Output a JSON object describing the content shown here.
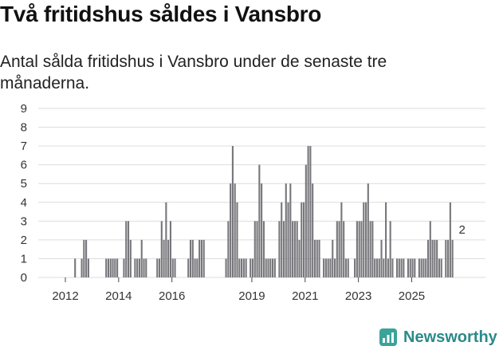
{
  "header": {
    "title": "Två fritidshus såldes i Vansbro",
    "subtitle": "Antal sålda fritidshus i Vansbro under de senaste tre månaderna."
  },
  "brand": {
    "name": "Newsworthy",
    "color": "#2b8a8a",
    "icon": "bar-chart-logo-icon"
  },
  "chart_data": {
    "type": "bar",
    "title": "",
    "xlabel": "",
    "ylabel": "",
    "ylim": [
      0,
      9
    ],
    "y_ticks": [
      "0",
      "1",
      "2",
      "3",
      "4",
      "5",
      "6",
      "7",
      "8",
      "9"
    ],
    "x_ticks": [
      {
        "label": "2012",
        "month_index": 0
      },
      {
        "label": "2014",
        "month_index": 24
      },
      {
        "label": "2016",
        "month_index": 48
      },
      {
        "label": "2019",
        "month_index": 84
      },
      {
        "label": "2021",
        "month_index": 108
      },
      {
        "label": "2023",
        "month_index": 132
      },
      {
        "label": "2025",
        "month_index": 156
      }
    ],
    "grid": true,
    "colors": {
      "bars": "#77767b",
      "highlight": "#2a9d8f"
    },
    "series": [
      {
        "values": [
          0,
          0,
          0,
          0,
          1,
          0,
          0,
          1,
          2,
          2,
          1,
          0,
          0,
          0,
          0,
          0,
          0,
          0,
          1,
          1,
          1,
          1,
          1,
          1,
          0,
          0,
          1,
          3,
          3,
          2,
          0,
          1,
          1,
          1,
          2,
          1,
          1,
          0,
          0,
          0,
          0,
          1,
          1,
          3,
          2,
          4,
          2,
          3,
          1,
          1,
          0,
          0,
          0,
          0,
          0,
          1,
          2,
          2,
          1,
          1,
          2,
          2,
          2,
          0,
          0,
          0,
          0,
          0,
          0,
          0,
          0,
          0,
          1,
          3,
          5,
          7,
          5,
          4,
          1,
          1,
          1,
          1,
          0,
          1,
          1,
          3,
          3,
          6,
          5,
          3,
          1,
          1,
          1,
          1,
          1,
          0,
          3,
          4,
          3,
          5,
          4,
          5,
          3,
          3,
          3,
          2,
          4,
          4,
          6,
          7,
          7,
          5,
          2,
          2,
          2,
          0,
          1,
          1,
          1,
          1,
          2,
          1,
          3,
          3,
          4,
          3,
          1,
          1,
          0,
          0,
          1,
          3,
          3,
          3,
          4,
          4,
          5,
          3,
          3,
          1,
          1,
          1,
          2,
          1,
          4,
          1,
          3,
          1,
          0,
          1,
          1,
          1,
          1,
          0,
          1,
          1,
          1,
          1,
          0,
          1,
          1,
          1,
          1,
          2,
          3,
          2,
          2,
          2,
          1,
          1,
          0,
          2,
          2,
          4,
          2
        ]
      }
    ],
    "highlight": {
      "month_index": 178,
      "value": 2,
      "label": "2"
    }
  }
}
